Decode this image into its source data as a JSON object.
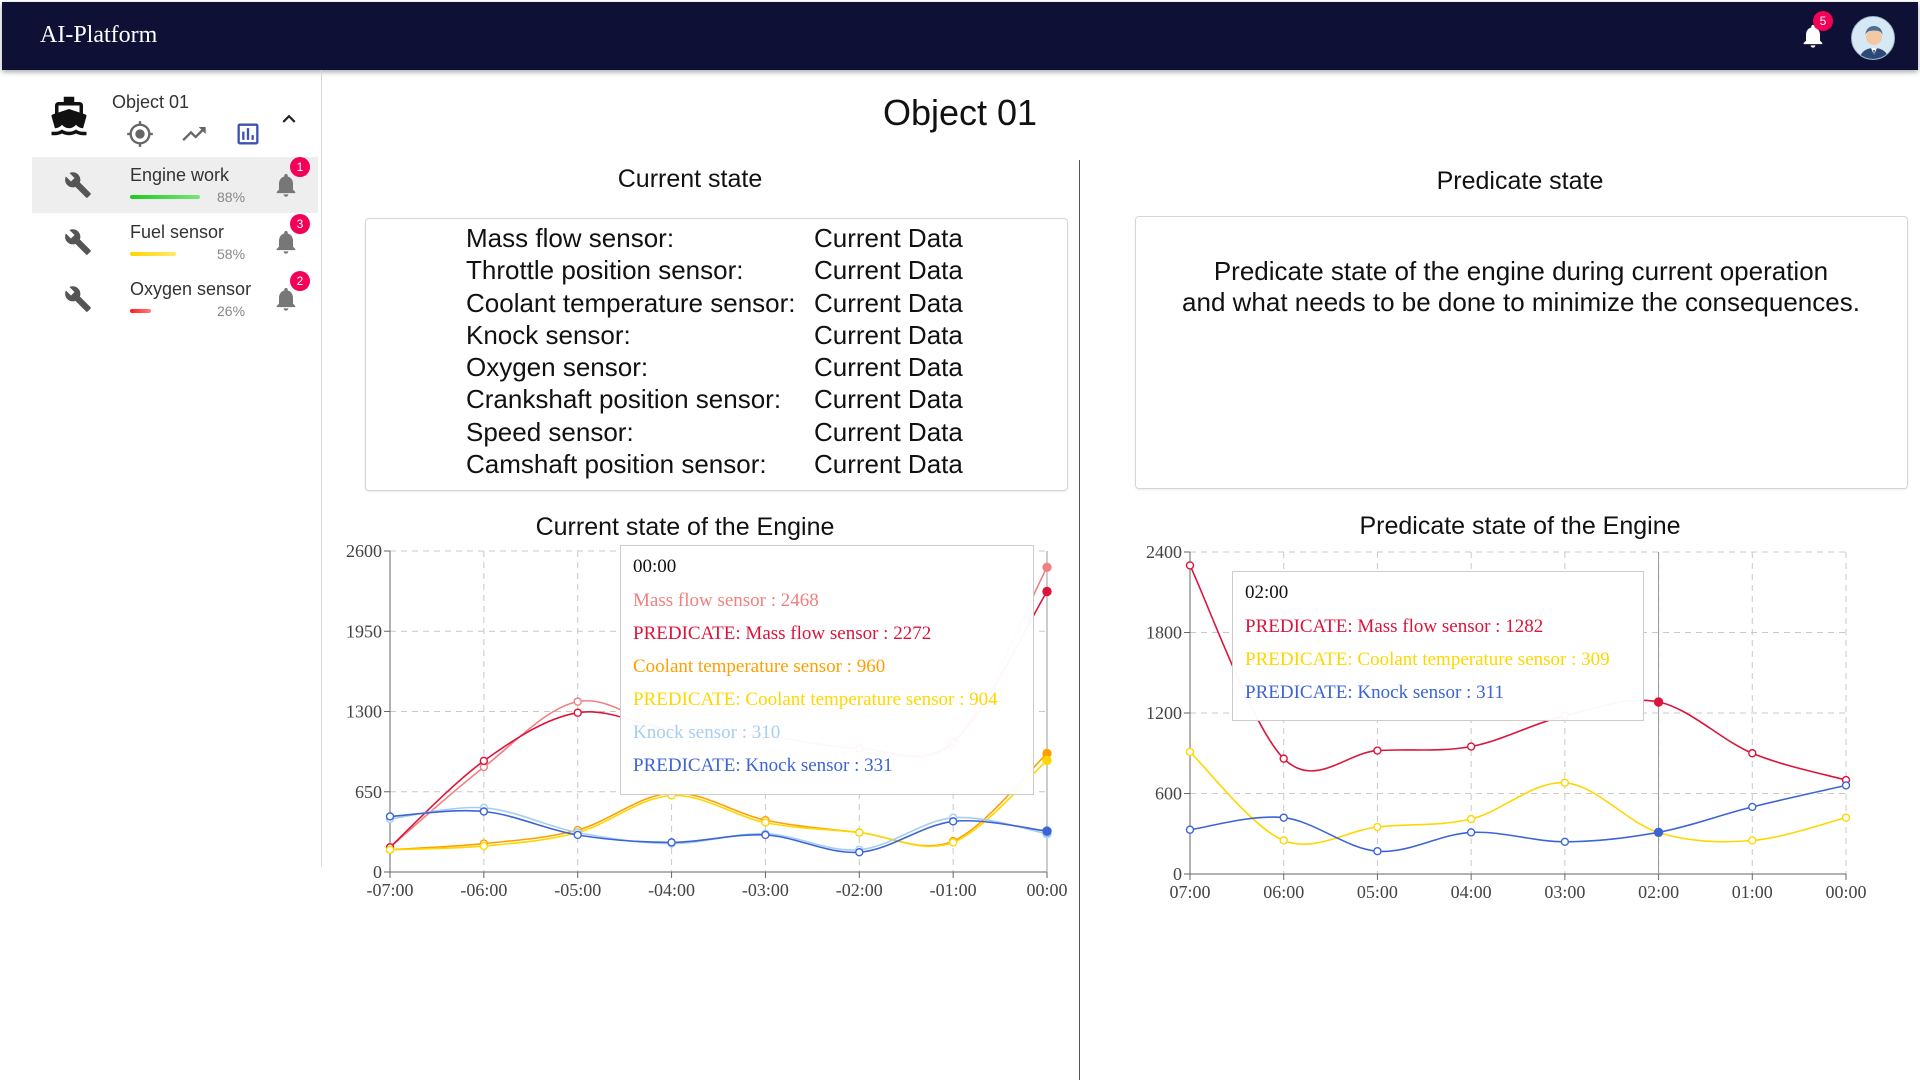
{
  "header": {
    "app_title": "AI-Platform",
    "notification_count": "5",
    "bell_icon": "notifications-icon",
    "avatar_icon": "user-avatar"
  },
  "sidebar": {
    "object_name": "Object 01",
    "object_icon": "ship-icon",
    "tools": [
      {
        "icon": "gps-fixed-icon"
      },
      {
        "icon": "trending-up-icon"
      },
      {
        "icon": "bar-chart-icon",
        "color": "#3f51b5"
      }
    ],
    "collapse_icon": "chevron-up-icon",
    "sensors": [
      {
        "label": "Engine work",
        "percent": "88%",
        "level": 0.88,
        "color": "#22cc22",
        "badge": "1",
        "active": true
      },
      {
        "label": "Fuel sensor",
        "percent": "58%",
        "level": 0.58,
        "color": "#ffd600",
        "badge": "3",
        "active": false
      },
      {
        "label": "Oxygen sensor",
        "percent": "26%",
        "level": 0.26,
        "color": "#ff1a1a",
        "badge": "2",
        "active": false
      }
    ]
  },
  "main": {
    "title": "Object 01",
    "current": {
      "title": "Current state",
      "rows": [
        {
          "name": "Mass flow sensor:",
          "value": "Current Data"
        },
        {
          "name": "Throttle position sensor:",
          "value": "Current Data"
        },
        {
          "name": "Coolant temperature sensor:",
          "value": "Current Data"
        },
        {
          "name": "Knock sensor:",
          "value": "Current Data"
        },
        {
          "name": "Oxygen sensor:",
          "value": "Current Data"
        },
        {
          "name": "Crankshaft position sensor:",
          "value": "Current Data"
        },
        {
          "name": "Speed sensor:",
          "value": "Current Data"
        },
        {
          "name": "Camshaft position sensor:",
          "value": "Current Data"
        }
      ]
    },
    "predicate": {
      "title": "Predicate state",
      "text_line1": "Predicate state of the engine during current operation",
      "text_line2": "and what needs to be done to minimize the consequences."
    }
  },
  "chart_data": [
    {
      "type": "line",
      "title": "Current state of the Engine",
      "x": [
        "-07:00",
        "-06:00",
        "-05:00",
        "-04:00",
        "-03:00",
        "-02:00",
        "-01:00",
        "00:00"
      ],
      "ylim": [
        0,
        2600
      ],
      "yticks": [
        "0",
        "650",
        "1300",
        "1950",
        "2600"
      ],
      "grid": true,
      "series": [
        {
          "name": "Mass flow sensor",
          "color": "#f08080",
          "values": [
            200,
            850,
            1380,
            1150,
            1100,
            1000,
            1050,
            2468
          ]
        },
        {
          "name": "PREDICATE: Mass flow sensor",
          "color": "#dc143c",
          "values": [
            200,
            900,
            1290,
            1150,
            1100,
            1000,
            1050,
            2272
          ]
        },
        {
          "name": "Coolant temperature sensor",
          "color": "#ff9f00",
          "values": [
            180,
            230,
            340,
            640,
            420,
            320,
            250,
            960
          ]
        },
        {
          "name": "PREDICATE: Coolant temperature sensor",
          "color": "#ffd700",
          "values": [
            180,
            210,
            320,
            620,
            400,
            320,
            240,
            904
          ]
        },
        {
          "name": "Knock sensor",
          "color": "#a6cef0",
          "values": [
            430,
            520,
            320,
            230,
            310,
            180,
            440,
            310
          ]
        },
        {
          "name": "PREDICATE: Knock sensor",
          "color": "#3c64d8",
          "values": [
            450,
            490,
            300,
            240,
            300,
            160,
            410,
            331
          ]
        }
      ],
      "tooltip": {
        "time": "00:00",
        "rows": [
          {
            "text": "Mass flow sensor : 2468",
            "color": "#f08080"
          },
          {
            "text": "PREDICATE: Mass flow sensor : 2272",
            "color": "#dc143c"
          },
          {
            "text": "Coolant temperature sensor : 960",
            "color": "#ff9f00"
          },
          {
            "text": "PREDICATE: Coolant temperature sensor : 904",
            "color": "#ffd700"
          },
          {
            "text": "Knock sensor : 310",
            "color": "#a6cef0"
          },
          {
            "text": "PREDICATE: Knock sensor : 331",
            "color": "#3c64d8"
          }
        ]
      }
    },
    {
      "type": "line",
      "title": "Predicate state of the Engine",
      "x": [
        "07:00",
        "06:00",
        "05:00",
        "04:00",
        "03:00",
        "02:00",
        "01:00",
        "00:00"
      ],
      "ylim": [
        0,
        2400
      ],
      "yticks": [
        "0",
        "600",
        "1200",
        "1800",
        "2400"
      ],
      "grid": true,
      "series": [
        {
          "name": "PREDICATE: Mass flow sensor",
          "color": "#dc143c",
          "values": [
            2300,
            860,
            920,
            950,
            1180,
            1282,
            900,
            700
          ]
        },
        {
          "name": "PREDICATE: Coolant temperature sensor",
          "color": "#ffd700",
          "values": [
            910,
            250,
            350,
            410,
            680,
            309,
            250,
            420
          ]
        },
        {
          "name": "PREDICATE: Knock sensor",
          "color": "#3c64d8",
          "values": [
            330,
            420,
            170,
            310,
            240,
            311,
            500,
            660
          ]
        }
      ],
      "tooltip": {
        "time": "02:00",
        "rows": [
          {
            "text": "PREDICATE: Mass flow sensor : 1282",
            "color": "#dc143c"
          },
          {
            "text": "PREDICATE: Coolant temperature sensor : 309",
            "color": "#ffd700"
          },
          {
            "text": "PREDICATE: Knock sensor : 311",
            "color": "#3c64d8"
          }
        ]
      }
    }
  ]
}
